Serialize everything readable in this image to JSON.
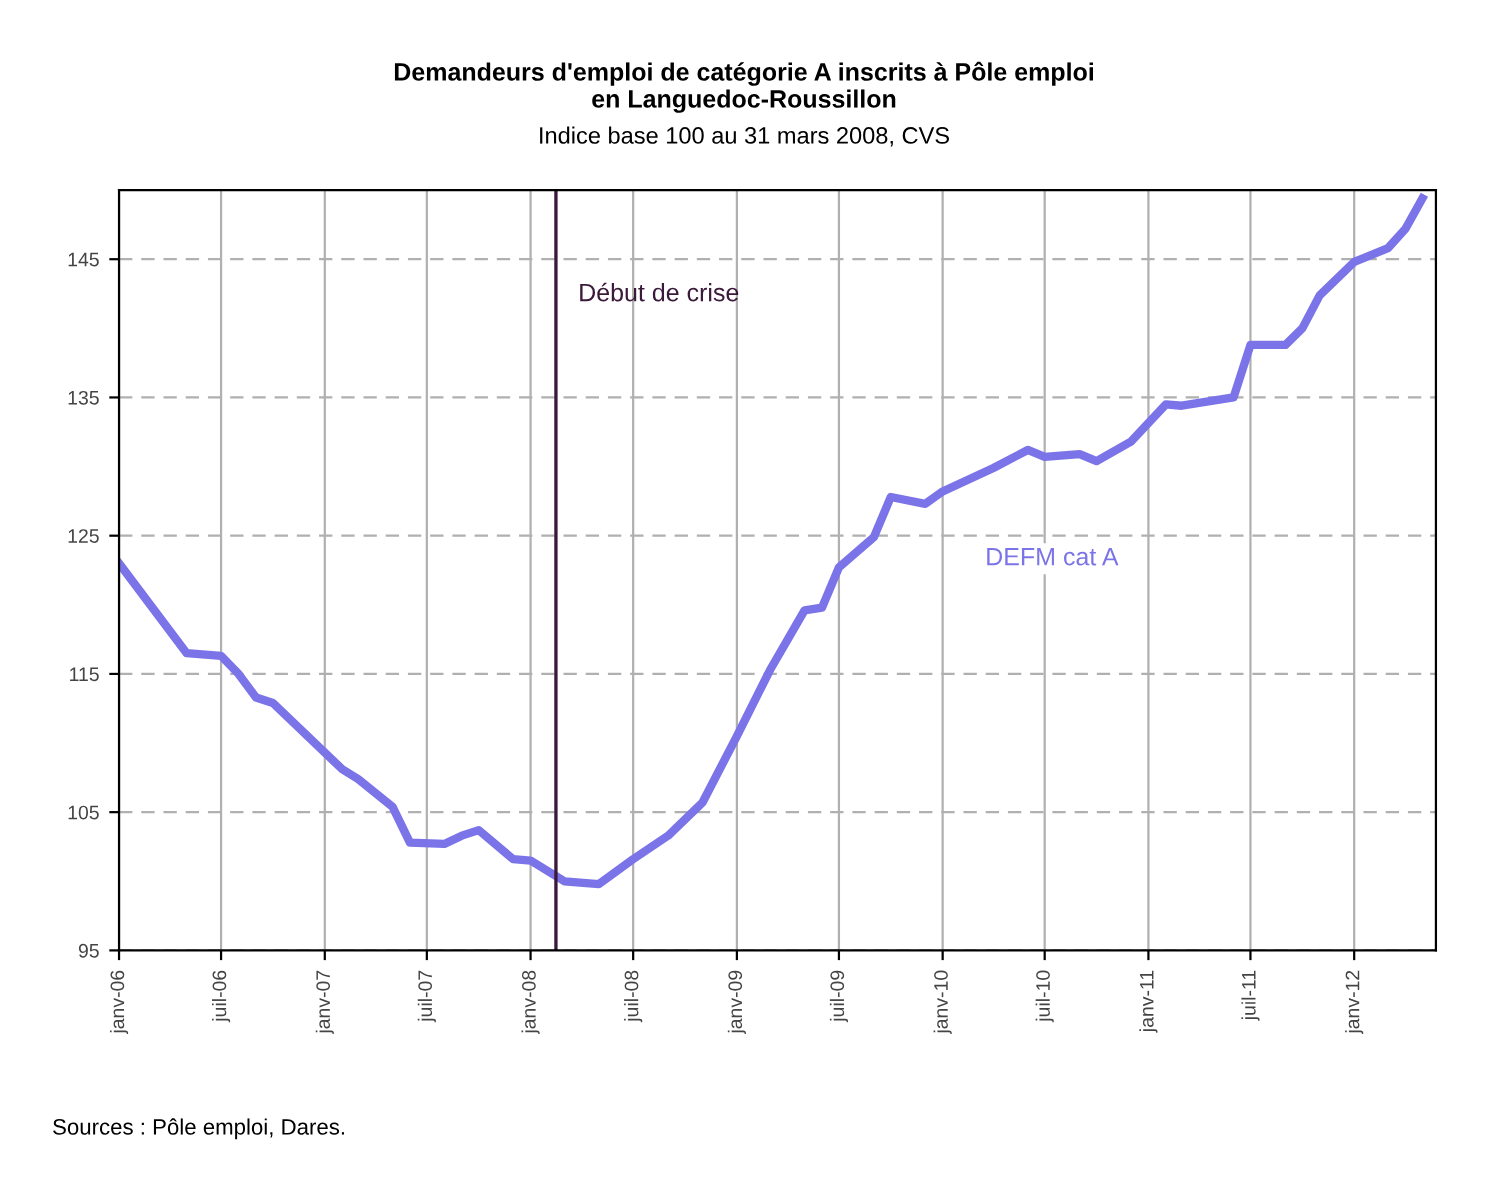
{
  "chart_data": {
    "type": "line",
    "title": "Demandeurs d'emploi de catégorie A inscrits à Pôle emploi\nen Languedoc-Roussillon",
    "subtitle": "Indice base 100 au 31 mars 2008, CVS",
    "annotations": [
      "Sources : Pôle emploi, Dares."
    ],
    "x": [
      "2006-01",
      "2006-05",
      "2006-07",
      "2006-08",
      "2006-09",
      "2006-10",
      "2007-02",
      "2007-03",
      "2007-05",
      "2007-06",
      "2007-08",
      "2007-09",
      "2007-10",
      "2007-12",
      "2008-01",
      "2008-03",
      "2008-05",
      "2008-07",
      "2008-09",
      "2008-11",
      "2009-01",
      "2009-03",
      "2009-05",
      "2009-06",
      "2009-07",
      "2009-09",
      "2009-10",
      "2009-12",
      "2010-01",
      "2010-04",
      "2010-06",
      "2010-07",
      "2010-09",
      "2010-10",
      "2010-12",
      "2011-02",
      "2011-03",
      "2011-06",
      "2011-07",
      "2011-09",
      "2011-10",
      "2011-11",
      "2012-01",
      "2012-03",
      "2012-04",
      "2012-05"
    ],
    "series": [
      {
        "name": "DEFM cat A",
        "color": "#7b74e8",
        "values": [
          123,
          116.5,
          116.3,
          115,
          113.3,
          112.9,
          108.1,
          107.4,
          105.4,
          102.8,
          102.7,
          103.3,
          103.7,
          101.6,
          101.5,
          100,
          99.8,
          101.6,
          103.3,
          105.7,
          110.5,
          115.3,
          119.6,
          119.8,
          122.7,
          124.9,
          127.8,
          127.3,
          128.2,
          129.9,
          131.2,
          130.7,
          130.9,
          130.4,
          131.8,
          134.5,
          134.4,
          135,
          138.8,
          138.8,
          140,
          142.4,
          144.8,
          145.8,
          147.2,
          149.4
        ]
      }
    ],
    "xlim": [
      "2006-01",
      "2012-05-25"
    ],
    "xticks": [
      {
        "value": "2006-01",
        "label": "janv-06"
      },
      {
        "value": "2006-07",
        "label": "juil-06"
      },
      {
        "value": "2007-01",
        "label": "janv-07"
      },
      {
        "value": "2007-07",
        "label": "juil-07"
      },
      {
        "value": "2008-01",
        "label": "janv-08"
      },
      {
        "value": "2008-07",
        "label": "juil-08"
      },
      {
        "value": "2009-01",
        "label": "janv-09"
      },
      {
        "value": "2009-07",
        "label": "juil-09"
      },
      {
        "value": "2010-01",
        "label": "janv-10"
      },
      {
        "value": "2010-07",
        "label": "juil-10"
      },
      {
        "value": "2011-01",
        "label": "janv-11"
      },
      {
        "value": "2011-07",
        "label": "juil-11"
      },
      {
        "value": "2012-01",
        "label": "janv-12"
      }
    ],
    "ylim": [
      95,
      150
    ],
    "yticks": [
      95,
      105,
      115,
      125,
      135,
      145
    ],
    "ref_lines": [
      {
        "axis": "x",
        "value": "2008-02-15",
        "label": "Début de crise",
        "color": "#3a1a3a"
      }
    ],
    "grid": true,
    "legend": false,
    "marker": "none",
    "line_style": "solid"
  }
}
